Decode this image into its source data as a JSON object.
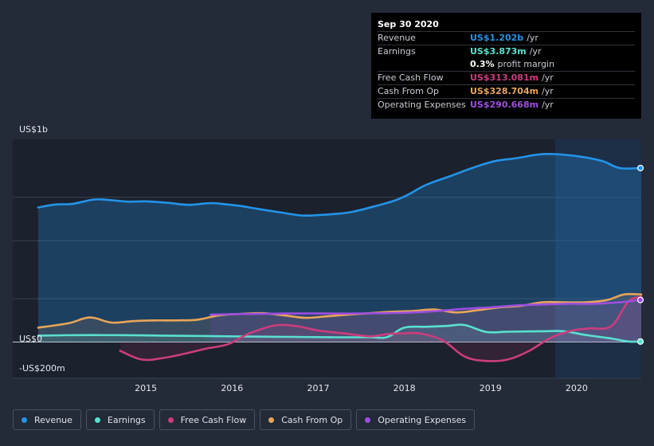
{
  "chart_data": {
    "type": "area",
    "y_axis_labels": [
      "US$1b",
      "US$0",
      "-US$200m"
    ],
    "x_tick_labels": [
      "2015",
      "2016",
      "2017",
      "2018",
      "2019",
      "2020"
    ],
    "x_ticks": [
      2015,
      2016,
      2017,
      2018,
      2019,
      2020
    ],
    "xlim": [
      2013.75,
      2020.75
    ],
    "ylim": [
      -250,
      1400
    ],
    "forecast_start": 2019.75,
    "series": [
      {
        "name": "Revenue",
        "color": "#2394e8",
        "x": [
          2013.75,
          2013.95,
          2014.15,
          2014.4,
          2014.6,
          2014.8,
          2015.0,
          2015.25,
          2015.5,
          2015.75,
          2015.95,
          2016.1,
          2016.3,
          2016.55,
          2016.8,
          2017.0,
          2017.2,
          2017.4,
          2017.7,
          2017.9,
          2018.05,
          2018.25,
          2018.55,
          2018.8,
          2019.05,
          2019.3,
          2019.55,
          2019.75,
          2020.05,
          2020.3,
          2020.5,
          2020.75
        ],
        "values": [
          930,
          950,
          955,
          985,
          980,
          970,
          972,
          962,
          948,
          960,
          950,
          940,
          920,
          897,
          875,
          877,
          885,
          900,
          945,
          980,
          1020,
          1085,
          1150,
          1205,
          1250,
          1270,
          1295,
          1298,
          1280,
          1250,
          1202,
          1202
        ],
        "fill": true
      },
      {
        "name": "Earnings",
        "color": "#59e0d0",
        "x": [
          2013.75,
          2014.2,
          2014.7,
          2015.2,
          2015.7,
          2016.2,
          2016.7,
          2017.2,
          2017.6,
          2017.8,
          2018.0,
          2018.25,
          2018.5,
          2018.7,
          2018.95,
          2019.2,
          2019.6,
          2019.85,
          2020.1,
          2020.4,
          2020.6,
          2020.75
        ],
        "values": [
          45,
          48,
          48,
          45,
          42,
          38,
          36,
          33,
          33,
          35,
          100,
          106,
          112,
          118,
          70,
          72,
          75,
          75,
          50,
          25,
          4,
          4
        ]
      },
      {
        "name": "Free Cash Flow",
        "color": "#cc3d7e",
        "x": [
          2014.7,
          2014.95,
          2015.2,
          2015.45,
          2015.7,
          2015.95,
          2016.2,
          2016.5,
          2016.75,
          2017.0,
          2017.3,
          2017.6,
          2017.8,
          2018.0,
          2018.2,
          2018.45,
          2018.7,
          2018.95,
          2019.2,
          2019.45,
          2019.7,
          2019.95,
          2020.15,
          2020.4,
          2020.6,
          2020.75
        ],
        "values": [
          -60,
          -120,
          -110,
          -80,
          -45,
          -15,
          60,
          115,
          110,
          80,
          60,
          40,
          55,
          60,
          58,
          10,
          -100,
          -130,
          -120,
          -60,
          30,
          80,
          95,
          110,
          280,
          313
        ]
      },
      {
        "name": "Cash From Op",
        "color": "#e8a55a",
        "x": [
          2013.75,
          2014.1,
          2014.35,
          2014.6,
          2014.85,
          2015.1,
          2015.35,
          2015.6,
          2015.85,
          2016.1,
          2016.35,
          2016.6,
          2016.85,
          2017.1,
          2017.35,
          2017.6,
          2017.85,
          2018.1,
          2018.35,
          2018.6,
          2018.85,
          2019.1,
          2019.35,
          2019.6,
          2019.85,
          2020.1,
          2020.35,
          2020.55,
          2020.75
        ],
        "values": [
          100,
          130,
          170,
          135,
          145,
          150,
          150,
          155,
          185,
          195,
          200,
          185,
          168,
          178,
          190,
          200,
          210,
          215,
          225,
          205,
          220,
          240,
          250,
          275,
          275,
          275,
          290,
          329,
          329
        ]
      },
      {
        "name": "Operating Expenses",
        "color": "#9d4ee0",
        "x": [
          2015.75,
          2016.0,
          2016.3,
          2016.6,
          2016.9,
          2017.2,
          2017.5,
          2017.8,
          2018.1,
          2018.4,
          2018.7,
          2019.0,
          2019.3,
          2019.6,
          2019.9,
          2020.2,
          2020.5,
          2020.75
        ],
        "values": [
          190,
          193,
          195,
          197,
          198,
          197,
          198,
          200,
          205,
          215,
          230,
          240,
          253,
          260,
          265,
          265,
          275,
          291
        ]
      }
    ],
    "tooltip": {
      "title": "Sep 30 2020",
      "rows": [
        {
          "label": "Revenue",
          "value": "US$1.202b",
          "unit": "/yr",
          "color": "#2394e8"
        },
        {
          "label": "Earnings",
          "value": "US$3.873m",
          "unit": "/yr",
          "color": "#59e0d0"
        },
        {
          "label": "",
          "value": "0.3%",
          "unit": "profit margin",
          "color": "#ffffff"
        },
        {
          "label": "Free Cash Flow",
          "value": "US$313.081m",
          "unit": "/yr",
          "color": "#cc3d7e"
        },
        {
          "label": "Cash From Op",
          "value": "US$328.704m",
          "unit": "/yr",
          "color": "#e8a55a"
        },
        {
          "label": "Operating Expenses",
          "value": "US$290.668m",
          "unit": "/yr",
          "color": "#9d4ee0"
        }
      ]
    },
    "legend": [
      "Revenue",
      "Earnings",
      "Free Cash Flow",
      "Cash From Op",
      "Operating Expenses"
    ]
  }
}
